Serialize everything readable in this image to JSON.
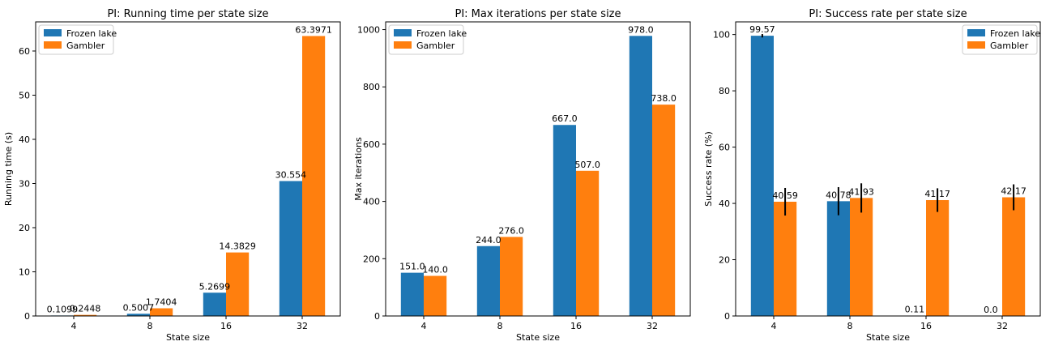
{
  "chart_data": [
    {
      "type": "bar",
      "title": "PI: Running time per state size",
      "xlabel": "State size",
      "ylabel": "Running time (s)",
      "categories": [
        "4",
        "8",
        "16",
        "32"
      ],
      "ylim": [
        0,
        66.6
      ],
      "yticks": [
        0,
        10,
        20,
        30,
        40,
        50,
        60
      ],
      "legend": "top-left",
      "series": [
        {
          "name": "Frozen lake",
          "color": "#1f77b4",
          "values": [
            0.1099,
            0.5007,
            5.2699,
            30.554
          ],
          "labels": [
            "0.1099",
            "0.5007",
            "5.2699",
            "30.554"
          ]
        },
        {
          "name": "Gambler",
          "color": "#ff7f0e",
          "values": [
            0.2448,
            1.7404,
            14.3829,
            63.3971
          ],
          "labels": [
            "0.2448",
            "1.7404",
            "14.3829",
            "63.3971"
          ]
        }
      ]
    },
    {
      "type": "bar",
      "title": "PI: Max iterations per state size",
      "xlabel": "State size",
      "ylabel": "Max iterations",
      "categories": [
        "4",
        "8",
        "16",
        "32"
      ],
      "ylim": [
        0,
        1027
      ],
      "yticks": [
        0,
        200,
        400,
        600,
        800,
        1000
      ],
      "legend": "top-left",
      "series": [
        {
          "name": "Frozen lake",
          "color": "#1f77b4",
          "values": [
            151,
            244,
            667,
            978
          ],
          "labels": [
            "151.0",
            "244.0",
            "667.0",
            "978.0"
          ]
        },
        {
          "name": "Gambler",
          "color": "#ff7f0e",
          "values": [
            140,
            276,
            507,
            738
          ],
          "labels": [
            "140.0",
            "276.0",
            "507.0",
            "738.0"
          ]
        }
      ]
    },
    {
      "type": "bar",
      "title": "PI: Success rate per state size",
      "xlabel": "State size",
      "ylabel": "Success rate (%)",
      "categories": [
        "4",
        "8",
        "16",
        "32"
      ],
      "ylim": [
        0,
        104.5
      ],
      "yticks": [
        0,
        20,
        40,
        60,
        80,
        100
      ],
      "legend": "top-right",
      "series": [
        {
          "name": "Frozen lake",
          "color": "#1f77b4",
          "values": [
            99.57,
            40.78,
            0.11,
            0.0
          ],
          "labels": [
            "99.57",
            "40.78",
            "0.11",
            "0.0"
          ],
          "errors": [
            0.6,
            5.0,
            0,
            0
          ]
        },
        {
          "name": "Gambler",
          "color": "#ff7f0e",
          "values": [
            40.59,
            41.93,
            41.17,
            42.17
          ],
          "labels": [
            "40.59",
            "41.93",
            "41.17",
            "42.17"
          ],
          "errors": [
            4.9,
            5.2,
            4.2,
            4.6
          ]
        }
      ]
    }
  ]
}
